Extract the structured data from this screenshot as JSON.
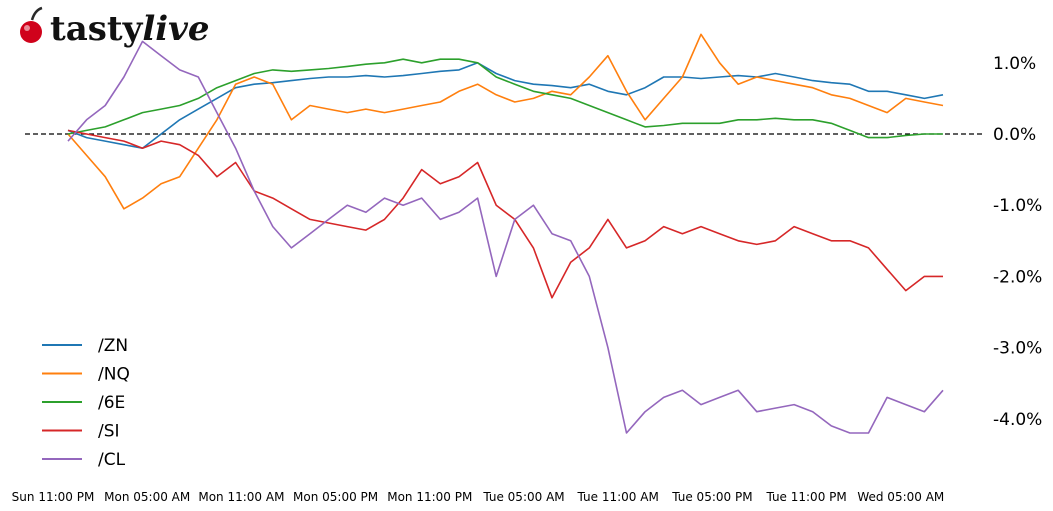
{
  "brand": {
    "name_part1": "tasty",
    "name_part2": "live",
    "accent_color": "#d0021b"
  },
  "chart_data": {
    "type": "line",
    "y_unit": "%",
    "ylim": [
      -4.6,
      1.5
    ],
    "y_ticks": [
      {
        "value": 1,
        "label": "1.0%"
      },
      {
        "value": 0,
        "label": "0.0%"
      },
      {
        "value": -1,
        "label": "-1.0%"
      },
      {
        "value": -2,
        "label": "-2.0%"
      },
      {
        "value": -3,
        "label": "-3.0%"
      },
      {
        "value": -4,
        "label": "-4.0%"
      }
    ],
    "x_ticks": [
      "Sun 11:00 PM",
      "Mon 05:00 AM",
      "Mon 11:00 AM",
      "Mon 05:00 PM",
      "Mon 11:00 PM",
      "Tue 05:00 AM",
      "Tue 11:00 AM",
      "Tue 05:00 PM",
      "Tue 11:00 PM",
      "Wed 05:00 AM"
    ],
    "baseline": 0,
    "legend_position": "bottom-left",
    "grid": false,
    "series": [
      {
        "name": "/ZN",
        "color": "#1f77b4",
        "values": [
          0.05,
          -0.05,
          -0.1,
          -0.15,
          -0.2,
          0.0,
          0.2,
          0.35,
          0.5,
          0.65,
          0.7,
          0.72,
          0.75,
          0.78,
          0.8,
          0.8,
          0.82,
          0.8,
          0.82,
          0.85,
          0.88,
          0.9,
          1.0,
          0.85,
          0.75,
          0.7,
          0.68,
          0.65,
          0.7,
          0.6,
          0.55,
          0.65,
          0.8,
          0.8,
          0.78,
          0.8,
          0.82,
          0.8,
          0.85,
          0.8,
          0.75,
          0.72,
          0.7,
          0.6,
          0.6,
          0.55,
          0.5,
          0.55
        ]
      },
      {
        "name": "/NQ",
        "color": "#ff7f0e",
        "values": [
          0.0,
          -0.3,
          -0.6,
          -1.05,
          -0.9,
          -0.7,
          -0.6,
          -0.2,
          0.2,
          0.7,
          0.8,
          0.7,
          0.2,
          0.4,
          0.35,
          0.3,
          0.35,
          0.3,
          0.35,
          0.4,
          0.45,
          0.6,
          0.7,
          0.55,
          0.45,
          0.5,
          0.6,
          0.55,
          0.8,
          1.1,
          0.6,
          0.2,
          0.5,
          0.8,
          1.4,
          1.0,
          0.7,
          0.8,
          0.75,
          0.7,
          0.65,
          0.55,
          0.5,
          0.4,
          0.3,
          0.5,
          0.45,
          0.4
        ]
      },
      {
        "name": "/6E",
        "color": "#2ca02c",
        "values": [
          0.0,
          0.05,
          0.1,
          0.2,
          0.3,
          0.35,
          0.4,
          0.5,
          0.65,
          0.75,
          0.85,
          0.9,
          0.88,
          0.9,
          0.92,
          0.95,
          0.98,
          1.0,
          1.05,
          1.0,
          1.05,
          1.05,
          1.0,
          0.8,
          0.7,
          0.6,
          0.55,
          0.5,
          0.4,
          0.3,
          0.2,
          0.1,
          0.12,
          0.15,
          0.15,
          0.15,
          0.2,
          0.2,
          0.22,
          0.2,
          0.2,
          0.15,
          0.05,
          -0.05,
          -0.05,
          -0.02,
          0.0,
          0.0
        ]
      },
      {
        "name": "/SI",
        "color": "#d62728",
        "values": [
          0.05,
          0.0,
          -0.05,
          -0.1,
          -0.2,
          -0.1,
          -0.15,
          -0.3,
          -0.6,
          -0.4,
          -0.8,
          -0.9,
          -1.05,
          -1.2,
          -1.25,
          -1.3,
          -1.35,
          -1.2,
          -0.9,
          -0.5,
          -0.7,
          -0.6,
          -0.4,
          -1.0,
          -1.2,
          -1.6,
          -2.3,
          -1.8,
          -1.6,
          -1.2,
          -1.6,
          -1.5,
          -1.3,
          -1.4,
          -1.3,
          -1.4,
          -1.5,
          -1.55,
          -1.5,
          -1.3,
          -1.4,
          -1.5,
          -1.5,
          -1.6,
          -1.9,
          -2.2,
          -2.0,
          -2.0
        ]
      },
      {
        "name": "/CL",
        "color": "#9467bd",
        "values": [
          -0.1,
          0.2,
          0.4,
          0.8,
          1.3,
          1.1,
          0.9,
          0.8,
          0.3,
          -0.2,
          -0.8,
          -1.3,
          -1.6,
          -1.4,
          -1.2,
          -1.0,
          -1.1,
          -0.9,
          -1.0,
          -0.9,
          -1.2,
          -1.1,
          -0.9,
          -2.0,
          -1.2,
          -1.0,
          -1.4,
          -1.5,
          -2.0,
          -3.0,
          -4.2,
          -3.9,
          -3.7,
          -3.6,
          -3.8,
          -3.7,
          -3.6,
          -3.9,
          -3.85,
          -3.8,
          -3.9,
          -4.1,
          -4.2,
          -4.2,
          -3.7,
          -3.8,
          -3.9,
          -3.6
        ]
      }
    ]
  }
}
